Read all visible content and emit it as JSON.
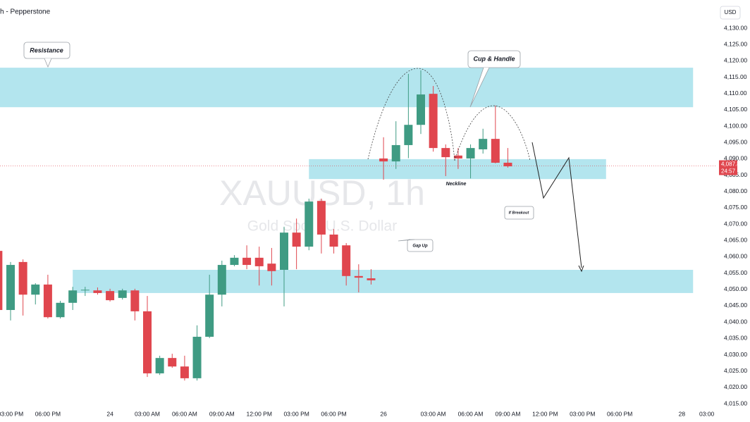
{
  "chart_data": {
    "type": "candlestick",
    "source": "h - Pepperstone",
    "currency": "USD",
    "title": "XAUUSD, 1h",
    "subtitle": "Gold Spot / U.S. Dollar",
    "annotations": {
      "resistance": "Resistance",
      "pattern": "Cup & Handle",
      "neckline": "Neckline",
      "breakout": "If Breakout",
      "gap": "Gap Up"
    },
    "up_color": "#3f9b83",
    "down_color": "#e0464e",
    "zone_color": "#b3e5ee",
    "x": [
      -1,
      0,
      1,
      2,
      3,
      4,
      5,
      6,
      7,
      8,
      9,
      10,
      11,
      12,
      13,
      14,
      15,
      16,
      17,
      18,
      19,
      20,
      21,
      22,
      23,
      24,
      25,
      26,
      27,
      28,
      29,
      30,
      31,
      32,
      33,
      34,
      35,
      36,
      37,
      38,
      39,
      40
    ],
    "open": [
      4061.8,
      4043.7,
      4058.4,
      4048.4,
      4051.5,
      4041.5,
      4045.9,
      4049.7,
      4049.7,
      4049.5,
      4047.4,
      4049.7,
      4043.3,
      4024.3,
      4029.0,
      4026.4,
      4022.8,
      4035.5,
      4048.4,
      4057.5,
      4059.7,
      4059.7,
      4057.9,
      4056.0,
      4067.4,
      4063.1,
      4077.1,
      4066.8,
      4063.5,
      4054.1,
      4053.4,
      4090.1,
      4089.2,
      4094.2,
      4100.4,
      4109.9,
      4093.3,
      4091.0,
      4090.1,
      4092.9,
      4096.1,
      4088.8
    ],
    "high": [
      4062.0,
      4058.4,
      4059.2,
      4051.9,
      4054.5,
      4046.5,
      4050.8,
      4050.8,
      4050.6,
      4050.2,
      4050.2,
      4050.2,
      4048.0,
      4029.7,
      4030.3,
      4029.7,
      4039.0,
      4054.5,
      4058.8,
      4060.5,
      4063.5,
      4063.1,
      4062.7,
      4069.2,
      4071.7,
      4077.8,
      4077.8,
      4068.5,
      4064.2,
      4057.7,
      4056.2,
      4096.6,
      4101.5,
      4116.0,
      4117.1,
      4112.3,
      4094.4,
      4093.3,
      4094.4,
      4099.2,
      4106.3,
      4093.3
    ],
    "low": [
      4042.6,
      4040.5,
      4042.0,
      4045.4,
      4041.1,
      4041.1,
      4043.7,
      4048.0,
      4048.4,
      4046.3,
      4046.9,
      4040.5,
      4023.2,
      4023.8,
      4026.0,
      4022.1,
      4022.1,
      4035.1,
      4044.8,
      4057.1,
      4056.2,
      4051.2,
      4051.2,
      4044.8,
      4056.2,
      4062.0,
      4061.0,
      4061.0,
      4051.2,
      4049.1,
      4051.5,
      4083.6,
      4086.9,
      4090.2,
      4097.6,
      4092.2,
      4084.7,
      4086.9,
      4084.0,
      4091.6,
      4088.6,
      4087.3
    ],
    "close": [
      4043.7,
      4057.5,
      4048.4,
      4051.5,
      4041.5,
      4045.9,
      4049.7,
      4049.9,
      4048.9,
      4046.7,
      4049.7,
      4043.3,
      4024.3,
      4029.0,
      4026.4,
      4022.8,
      4035.5,
      4048.4,
      4057.5,
      4059.7,
      4057.5,
      4057.1,
      4055.6,
      4067.4,
      4063.1,
      4076.9,
      4066.8,
      4063.1,
      4054.1,
      4053.6,
      4052.8,
      4089.2,
      4094.2,
      4100.4,
      4109.7,
      4093.3,
      4090.5,
      4090.1,
      4093.3,
      4096.1,
      4088.8,
      4087.7
    ],
    "zones": [
      {
        "low": 4105.8,
        "high": 4117.9,
        "start": -0.85,
        "end": 54.9
      },
      {
        "low": 4083.8,
        "high": 4089.9,
        "start": 24.0,
        "end": 47.9
      },
      {
        "low": 4048.9,
        "high": 4056.0,
        "start": 5.0,
        "end": 54.9
      }
    ],
    "last_price": {
      "value": 4087.82,
      "label": "4,087.82"
    },
    "countdown": "24:57",
    "xlim": [
      -0.85,
      56.7
    ],
    "xticks": [
      {
        "value": 0,
        "label": "03:00 PM"
      },
      {
        "value": 3,
        "label": "06:00 PM"
      },
      {
        "value": 8,
        "label": "24"
      },
      {
        "value": 11,
        "label": "03:00 AM"
      },
      {
        "value": 14,
        "label": "06:00 AM"
      },
      {
        "value": 17,
        "label": "09:00 AM"
      },
      {
        "value": 20,
        "label": "12:00 PM"
      },
      {
        "value": 23,
        "label": "03:00 PM"
      },
      {
        "value": 26,
        "label": "06:00 PM"
      },
      {
        "value": 30,
        "label": "26"
      },
      {
        "value": 34,
        "label": "03:00 AM"
      },
      {
        "value": 37,
        "label": "06:00 AM"
      },
      {
        "value": 40,
        "label": "09:00 AM"
      },
      {
        "value": 43,
        "label": "12:00 PM"
      },
      {
        "value": 46,
        "label": "03:00 PM"
      },
      {
        "value": 49,
        "label": "06:00 PM"
      },
      {
        "value": 54,
        "label": "28"
      },
      {
        "value": 56,
        "label": "03:00"
      }
    ],
    "ylim": [
      4013.5,
      4138.63
    ],
    "yticks": [
      {
        "value": 4015,
        "label": "4,015.00"
      },
      {
        "value": 4020,
        "label": "4,020.00"
      },
      {
        "value": 4025,
        "label": "4,025.00"
      },
      {
        "value": 4030,
        "label": "4,030.00"
      },
      {
        "value": 4035,
        "label": "4,035.00"
      },
      {
        "value": 4040,
        "label": "4,040.00"
      },
      {
        "value": 4045,
        "label": "4,045.00"
      },
      {
        "value": 4050,
        "label": "4,050.00"
      },
      {
        "value": 4055,
        "label": "4,055.00"
      },
      {
        "value": 4060,
        "label": "4,060.00"
      },
      {
        "value": 4065,
        "label": "4,065.00"
      },
      {
        "value": 4070,
        "label": "4,070.00"
      },
      {
        "value": 4075,
        "label": "4,075.00"
      },
      {
        "value": 4080,
        "label": "4,080.00"
      },
      {
        "value": 4085,
        "label": "4,085.00"
      },
      {
        "value": 4090,
        "label": "4,090.00"
      },
      {
        "value": 4095,
        "label": "4,095.00"
      },
      {
        "value": 4100,
        "label": "4,100.00"
      },
      {
        "value": 4105,
        "label": "4,105.00"
      },
      {
        "value": 4110,
        "label": "4,110.00"
      },
      {
        "value": 4115,
        "label": "4,115.00"
      },
      {
        "value": 4120,
        "label": "4,120.00"
      },
      {
        "value": 4125,
        "label": "4,125.00"
      },
      {
        "value": 4130,
        "label": "4,130.00"
      }
    ],
    "grid": false
  }
}
